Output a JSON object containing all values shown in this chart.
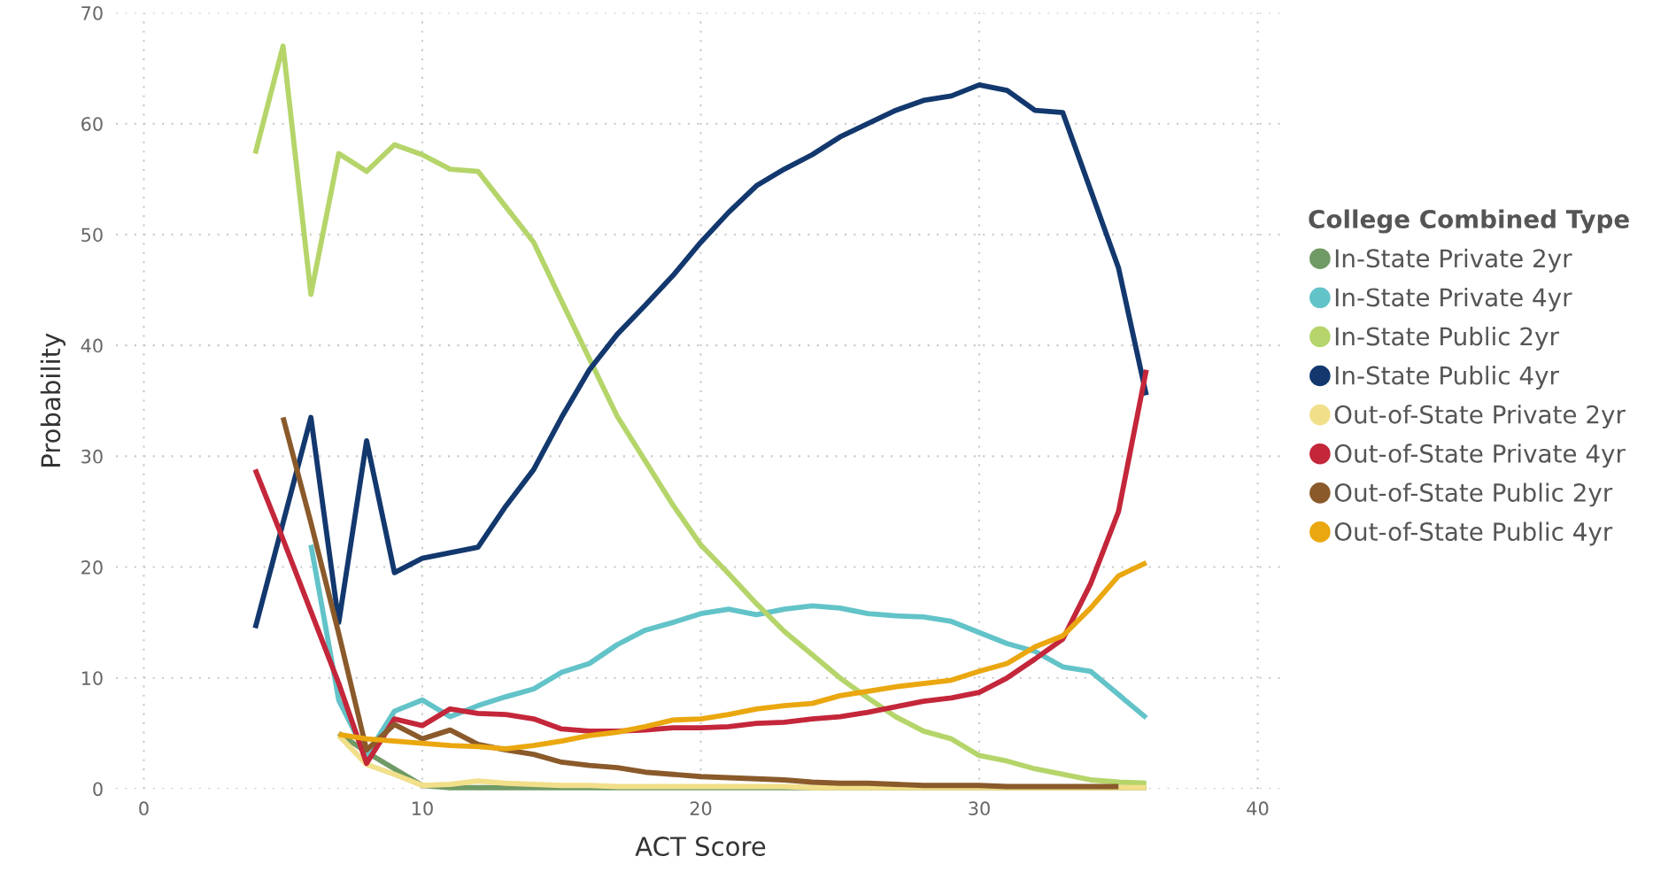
{
  "chart_data": {
    "type": "line",
    "xlabel": "ACT Score",
    "ylabel": "Probability",
    "legend_title": "College Combined Type",
    "legend": "right",
    "grid": true,
    "line_style": "solid",
    "marker": "none",
    "xlim": [
      -1,
      41
    ],
    "xticks": [
      0,
      10,
      20,
      30,
      40
    ],
    "ylim": [
      0,
      70
    ],
    "yticks": [
      0,
      10,
      20,
      30,
      40,
      50,
      60,
      70
    ],
    "series": [
      {
        "name": "In-State Private 2yr",
        "color": "#6f9a65",
        "x": [
          7,
          8,
          9,
          10,
          11,
          12,
          13,
          14,
          15,
          16,
          17,
          18,
          19,
          20,
          21,
          22,
          23,
          24,
          25,
          26,
          27,
          28,
          29,
          30,
          31,
          32,
          33,
          34,
          35,
          36
        ],
        "values": [
          5,
          3.3,
          1.8,
          0.3,
          0.1,
          0.1,
          0.1,
          0.1,
          0.1,
          0.1,
          0.1,
          0.1,
          0.1,
          0.1,
          0.1,
          0.1,
          0.1,
          0.1,
          0.1,
          0.1,
          0.1,
          0.1,
          0.1,
          0.1,
          0.1,
          0.1,
          0.1,
          0.1,
          0.1,
          0.1
        ]
      },
      {
        "name": "In-State Private 4yr",
        "color": "#62c3c8",
        "x": [
          6,
          7,
          8,
          9,
          10,
          11,
          12,
          13,
          14,
          15,
          16,
          17,
          18,
          19,
          20,
          21,
          22,
          23,
          24,
          25,
          26,
          27,
          28,
          29,
          30,
          31,
          32,
          33,
          34,
          35,
          36
        ],
        "values": [
          22,
          8,
          3,
          7,
          8,
          6.5,
          7.5,
          8.3,
          9,
          10.5,
          11.3,
          13,
          14.3,
          15,
          15.8,
          16.2,
          15.7,
          16.2,
          16.5,
          16.3,
          15.8,
          15.6,
          15.5,
          15.1,
          14.1,
          13.1,
          12.4,
          11,
          10.6,
          8.5,
          6.4
        ]
      },
      {
        "name": "In-State Public 2yr",
        "color": "#b5d56a",
        "x": [
          4,
          5,
          6,
          7,
          8,
          9,
          10,
          11,
          12,
          13,
          14,
          15,
          16,
          17,
          18,
          19,
          20,
          21,
          22,
          23,
          24,
          25,
          26,
          27,
          28,
          29,
          30,
          31,
          32,
          33,
          34,
          35,
          36
        ],
        "values": [
          57.3,
          67,
          44.6,
          57.3,
          55.7,
          58.1,
          57.2,
          55.9,
          55.7,
          52.5,
          49.3,
          44,
          38.8,
          33.6,
          29.6,
          25.6,
          22,
          19.4,
          16.7,
          14.2,
          12.1,
          10,
          8.2,
          6.5,
          5.2,
          4.5,
          3,
          2.5,
          1.8,
          1.3,
          0.8,
          0.6,
          0.5
        ]
      },
      {
        "name": "In-State Public 4yr",
        "color": "#12386e",
        "x": [
          4,
          5,
          6,
          7,
          8,
          9,
          10,
          11,
          12,
          13,
          14,
          15,
          16,
          17,
          18,
          19,
          20,
          21,
          22,
          23,
          24,
          25,
          26,
          27,
          28,
          29,
          30,
          31,
          32,
          33,
          34,
          35,
          36
        ],
        "values": [
          14.5,
          24,
          33.5,
          15,
          31.4,
          19.5,
          20.8,
          21.3,
          21.8,
          25.5,
          28.8,
          33.5,
          37.8,
          41,
          43.6,
          46.3,
          49.3,
          52,
          54.4,
          55.9,
          57.2,
          58.8,
          60,
          61.2,
          62.1,
          62.5,
          63.5,
          63,
          61.2,
          61,
          54,
          47,
          35.5
        ]
      },
      {
        "name": "Out-of-State Private 2yr",
        "color": "#f2df8a",
        "x": [
          7,
          8,
          9,
          10,
          11,
          12,
          13,
          14,
          15,
          16,
          17,
          18,
          19,
          20,
          21,
          22,
          23,
          24,
          25,
          26,
          27,
          28,
          29,
          30,
          31,
          32,
          33,
          34,
          35,
          36
        ],
        "values": [
          4.8,
          2.2,
          1.3,
          0.3,
          0.4,
          0.7,
          0.5,
          0.4,
          0.3,
          0.3,
          0.2,
          0.2,
          0.2,
          0.2,
          0.2,
          0.2,
          0.2,
          0.1,
          0.1,
          0.1,
          0.1,
          0.1,
          0.1,
          0.1,
          0.1,
          0.1,
          0.1,
          0.1,
          0.1,
          0.1
        ]
      },
      {
        "name": "Out-of-State Private 4yr",
        "color": "#c4263a",
        "x": [
          4,
          5,
          6,
          7,
          8,
          9,
          10,
          11,
          12,
          13,
          14,
          15,
          16,
          17,
          18,
          19,
          20,
          21,
          22,
          23,
          24,
          25,
          26,
          27,
          28,
          29,
          30,
          31,
          32,
          33,
          34,
          35,
          36
        ],
        "values": [
          28.8,
          22.5,
          16,
          9.5,
          2.3,
          6.3,
          5.7,
          7.2,
          6.8,
          6.7,
          6.3,
          5.4,
          5.2,
          5.2,
          5.3,
          5.5,
          5.5,
          5.6,
          5.9,
          6,
          6.3,
          6.5,
          6.9,
          7.4,
          7.9,
          8.2,
          8.7,
          10,
          11.7,
          13.5,
          18.5,
          25,
          37.8
        ]
      },
      {
        "name": "Out-of-State Public 2yr",
        "color": "#8a5a2b",
        "x": [
          5,
          6,
          7,
          8,
          9,
          10,
          11,
          12,
          13,
          14,
          15,
          16,
          17,
          18,
          19,
          20,
          21,
          22,
          23,
          24,
          25,
          26,
          27,
          28,
          29,
          30,
          31,
          32,
          33,
          34,
          35
        ],
        "values": [
          33.5,
          24,
          14,
          3.5,
          5.8,
          4.5,
          5.3,
          4,
          3.5,
          3.1,
          2.4,
          2.1,
          1.9,
          1.5,
          1.3,
          1.1,
          1,
          0.9,
          0.8,
          0.6,
          0.5,
          0.5,
          0.4,
          0.3,
          0.3,
          0.3,
          0.2,
          0.2,
          0.2,
          0.2,
          0.2
        ]
      },
      {
        "name": "Out-of-State Public 4yr",
        "color": "#eaa70f",
        "x": [
          7,
          8,
          9,
          10,
          11,
          12,
          13,
          14,
          15,
          16,
          17,
          18,
          19,
          20,
          21,
          22,
          23,
          24,
          25,
          26,
          27,
          28,
          29,
          30,
          31,
          32,
          33,
          34,
          35,
          36
        ],
        "values": [
          4.9,
          4.5,
          4.3,
          4.1,
          3.9,
          3.8,
          3.6,
          3.9,
          4.3,
          4.8,
          5.1,
          5.6,
          6.2,
          6.3,
          6.7,
          7.2,
          7.5,
          7.7,
          8.4,
          8.8,
          9.2,
          9.5,
          9.8,
          10.6,
          11.3,
          12.8,
          13.8,
          16.3,
          19.2,
          20.4
        ]
      }
    ]
  }
}
